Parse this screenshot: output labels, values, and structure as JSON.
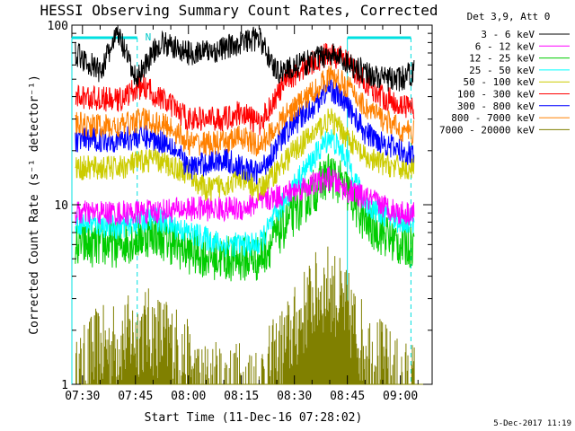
{
  "chart_data": {
    "type": "line",
    "title": "HESSI Observing Summary Count Rates, Corrected",
    "xlabel": "Start Time (11-Dec-16 07:28:02)",
    "ylabel": "Corrected Count Rate (s⁻¹ detector⁻¹)",
    "y_scale": "log",
    "ylim": [
      1,
      100
    ],
    "xlim": [
      "07:27",
      "09:09"
    ],
    "x_ticks": [
      "07:30",
      "07:45",
      "08:00",
      "08:15",
      "08:30",
      "08:45",
      "09:00"
    ],
    "y_ticks": [
      "1",
      "10",
      "100"
    ],
    "legend_title": "Det 3,9, Att 0",
    "legend_position": "right-outside",
    "annotations": [
      {
        "text": "N",
        "x": "07:47"
      }
    ],
    "series": [
      {
        "name": "3 - 6 keV",
        "color": "#000000",
        "x": [
          "07:28",
          "07:35",
          "07:40",
          "07:45",
          "07:52",
          "08:00",
          "08:08",
          "08:15",
          "08:20",
          "08:25",
          "08:32",
          "08:40",
          "08:45",
          "08:50",
          "08:55",
          "09:00",
          "09:04"
        ],
        "values": [
          70,
          55,
          90,
          50,
          80,
          70,
          72,
          80,
          85,
          55,
          60,
          70,
          62,
          55,
          50,
          50,
          55
        ]
      },
      {
        "name": "6 - 12 keV",
        "color": "#ff00ff",
        "x": [
          "07:28",
          "07:45",
          "08:00",
          "08:15",
          "08:30",
          "08:40",
          "08:45",
          "09:00",
          "09:04"
        ],
        "values": [
          9,
          9,
          9.5,
          9.5,
          12,
          14,
          12,
          9,
          9
        ]
      },
      {
        "name": "12 - 25 keV",
        "color": "#00cc00",
        "x": [
          "07:28",
          "07:40",
          "07:50",
          "08:00",
          "08:10",
          "08:20",
          "08:30",
          "08:40",
          "08:45",
          "08:50",
          "09:00",
          "09:04"
        ],
        "values": [
          6,
          6,
          7,
          5.5,
          5,
          5,
          9,
          15,
          12,
          8,
          6,
          6
        ]
      },
      {
        "name": "25 - 50 keV",
        "color": "#00ffff",
        "x": [
          "07:28",
          "07:40",
          "07:50",
          "08:00",
          "08:10",
          "08:20",
          "08:30",
          "08:40",
          "08:45",
          "08:50",
          "09:00",
          "09:04"
        ],
        "values": [
          8,
          7.5,
          8.5,
          7,
          6,
          6,
          13,
          24,
          18,
          10,
          8,
          8
        ]
      },
      {
        "name": "50 - 100 keV",
        "color": "#cccc00",
        "x": [
          "07:28",
          "07:40",
          "07:50",
          "08:00",
          "08:05",
          "08:15",
          "08:20",
          "08:30",
          "08:40",
          "08:45",
          "08:50",
          "09:00",
          "09:04"
        ],
        "values": [
          16,
          16,
          18,
          15,
          12,
          14,
          12,
          20,
          30,
          24,
          18,
          16,
          16
        ]
      },
      {
        "name": "100 - 300 keV",
        "color": "#ff0000",
        "x": [
          "07:28",
          "07:40",
          "07:47",
          "07:53",
          "08:00",
          "08:10",
          "08:15",
          "08:20",
          "08:28",
          "08:35",
          "08:40",
          "08:45",
          "08:50",
          "08:55",
          "09:00",
          "09:04"
        ],
        "values": [
          40,
          38,
          46,
          38,
          30,
          30,
          33,
          28,
          50,
          62,
          70,
          62,
          48,
          40,
          36,
          35
        ]
      },
      {
        "name": "300 - 800 keV",
        "color": "#0000ff",
        "x": [
          "07:28",
          "07:40",
          "07:47",
          "07:55",
          "08:00",
          "08:10",
          "08:15",
          "08:20",
          "08:28",
          "08:35",
          "08:40",
          "08:45",
          "08:50",
          "09:00",
          "09:04"
        ],
        "values": [
          23,
          23,
          24,
          22,
          16,
          18,
          16,
          15,
          26,
          35,
          45,
          36,
          25,
          20,
          19
        ]
      },
      {
        "name": "800 - 7000 keV",
        "color": "#ff8000",
        "x": [
          "07:28",
          "07:40",
          "07:47",
          "07:55",
          "08:00",
          "08:10",
          "08:15",
          "08:20",
          "08:28",
          "08:35",
          "08:40",
          "08:45",
          "08:50",
          "08:55",
          "09:00",
          "09:04"
        ],
        "values": [
          28,
          27,
          30,
          27,
          22,
          22,
          24,
          21,
          32,
          42,
          52,
          46,
          35,
          30,
          26,
          25
        ]
      },
      {
        "name": "7000 - 20000 keV",
        "color": "#808000",
        "x": [
          "07:28",
          "07:33",
          "07:38",
          "07:43",
          "07:48",
          "07:53",
          "07:58",
          "08:03",
          "08:10",
          "08:20",
          "08:25",
          "08:30",
          "08:35",
          "08:40",
          "08:45",
          "08:50",
          "08:55",
          "09:00",
          "09:04"
        ],
        "values": [
          1,
          1.5,
          1.6,
          1.8,
          2,
          1.8,
          1.5,
          1,
          1,
          1,
          1.4,
          2,
          3,
          3.5,
          2.5,
          1.6,
          1.3,
          1,
          1
        ]
      }
    ]
  },
  "footer": {
    "stamp": "5-Dec-2017 11:19"
  }
}
